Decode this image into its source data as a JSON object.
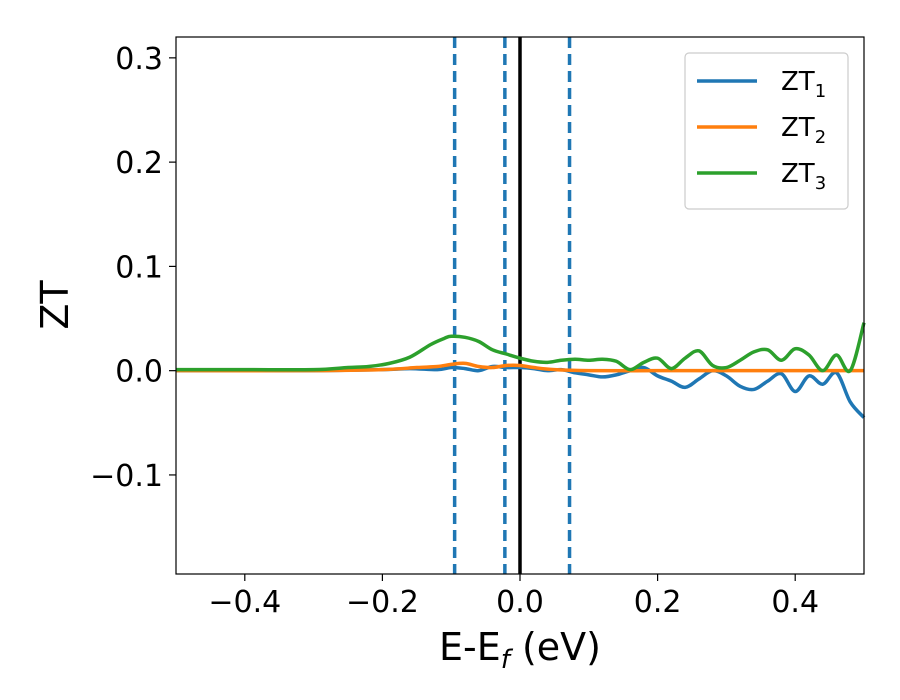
{
  "chart_data": {
    "type": "line",
    "xlabel": "E-E",
    "xlabel_sub": "f",
    "xlabel_unit": " (eV)",
    "ylabel": "ZT",
    "xlim": [
      -0.5,
      0.5
    ],
    "ylim": [
      -0.195,
      0.32
    ],
    "xticks": [
      -0.4,
      -0.2,
      0.0,
      0.2,
      0.4
    ],
    "xtick_labels": [
      "−0.4",
      "−0.2",
      "0.0",
      "0.2",
      "0.4"
    ],
    "yticks": [
      -0.1,
      0.0,
      0.1,
      0.2,
      0.3
    ],
    "ytick_labels": [
      "−0.1",
      "0.0",
      "0.1",
      "0.2",
      "0.3"
    ],
    "grid": false,
    "legend_position": "top-right",
    "reference_lines": {
      "solid": {
        "x": 0.0,
        "color": "#000000"
      },
      "dashed": {
        "x": [
          -0.095,
          -0.022,
          0.072
        ],
        "color": "#1f77b4"
      }
    },
    "series": [
      {
        "name": "ZT",
        "name_sub": "1",
        "color": "#1f77b4",
        "x": [
          -0.5,
          -0.4,
          -0.3,
          -0.2,
          -0.16,
          -0.12,
          -0.1,
          -0.08,
          -0.06,
          -0.04,
          -0.02,
          0.0,
          0.02,
          0.04,
          0.06,
          0.08,
          0.1,
          0.12,
          0.14,
          0.16,
          0.18,
          0.2,
          0.22,
          0.24,
          0.26,
          0.28,
          0.3,
          0.32,
          0.34,
          0.36,
          0.38,
          0.4,
          0.42,
          0.44,
          0.46,
          0.48,
          0.5
        ],
        "y": [
          0.0,
          0.0,
          0.0,
          0.001,
          0.002,
          0.001,
          0.003,
          0.002,
          0.0,
          0.004,
          0.003,
          0.003,
          0.002,
          0.0,
          0.001,
          -0.002,
          -0.004,
          -0.006,
          -0.004,
          0.0,
          0.003,
          -0.005,
          -0.01,
          -0.016,
          -0.008,
          0.0,
          -0.005,
          -0.015,
          -0.018,
          -0.01,
          -0.003,
          -0.02,
          -0.005,
          -0.013,
          -0.002,
          -0.03,
          -0.045
        ]
      },
      {
        "name": "ZT",
        "name_sub": "2",
        "color": "#ff7f0e",
        "x": [
          -0.5,
          -0.3,
          -0.2,
          -0.15,
          -0.12,
          -0.1,
          -0.08,
          -0.06,
          -0.04,
          -0.02,
          0.0,
          0.02,
          0.05,
          0.1,
          0.2,
          0.3,
          0.4,
          0.5
        ],
        "y": [
          0.0,
          0.0,
          0.001,
          0.003,
          0.004,
          0.006,
          0.007,
          0.004,
          0.003,
          0.005,
          0.005,
          0.003,
          0.001,
          0.0,
          0.0,
          0.0,
          0.0,
          0.0
        ]
      },
      {
        "name": "ZT",
        "name_sub": "3",
        "color": "#2ca02c",
        "x": [
          -0.5,
          -0.4,
          -0.3,
          -0.25,
          -0.22,
          -0.19,
          -0.16,
          -0.13,
          -0.11,
          -0.1,
          -0.08,
          -0.06,
          -0.04,
          -0.02,
          0.0,
          0.02,
          0.04,
          0.06,
          0.08,
          0.1,
          0.12,
          0.14,
          0.16,
          0.18,
          0.2,
          0.22,
          0.24,
          0.26,
          0.28,
          0.3,
          0.32,
          0.34,
          0.36,
          0.38,
          0.4,
          0.42,
          0.44,
          0.46,
          0.48,
          0.5
        ],
        "y": [
          0.001,
          0.001,
          0.001,
          0.003,
          0.004,
          0.007,
          0.013,
          0.025,
          0.031,
          0.033,
          0.032,
          0.028,
          0.02,
          0.016,
          0.012,
          0.009,
          0.008,
          0.01,
          0.011,
          0.01,
          0.011,
          0.009,
          0.001,
          0.008,
          0.012,
          0.002,
          0.012,
          0.019,
          0.005,
          0.003,
          0.01,
          0.018,
          0.02,
          0.01,
          0.021,
          0.015,
          0.0,
          0.015,
          0.0,
          0.046
        ]
      }
    ]
  }
}
